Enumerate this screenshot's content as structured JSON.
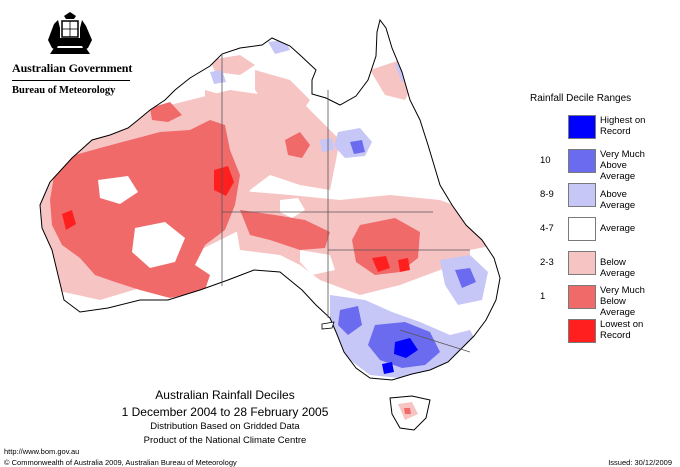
{
  "header": {
    "government": "Australian Government",
    "bureau": "Bureau of Meteorology",
    "crest_icon": "coat-of-arms-icon"
  },
  "legend": {
    "title": "Rainfall Decile Ranges",
    "items": [
      {
        "range": "",
        "label_line1": "Highest on",
        "label_line2": "Record",
        "color": "#0000ff"
      },
      {
        "range": "10",
        "label_line1": "Very Much",
        "label_line2": "Above Average",
        "color": "#6b6bef"
      },
      {
        "range": "8-9",
        "label_line1": "Above Average",
        "label_line2": "",
        "color": "#c6c6f7"
      },
      {
        "range": "4-7",
        "label_line1": "Average",
        "label_line2": "",
        "color": "#ffffff"
      },
      {
        "range": "2-3",
        "label_line1": "Below Average",
        "label_line2": "",
        "color": "#f7c4c4"
      },
      {
        "range": "1",
        "label_line1": "Very Much",
        "label_line2": "Below Average",
        "color": "#f06a6a"
      },
      {
        "range": "",
        "label_line1": "Lowest on",
        "label_line2": "Record",
        "color": "#ff1f1f"
      }
    ]
  },
  "caption": {
    "title": "Australian Rainfall Deciles",
    "dates": "1 December 2004 to 28 February 2005",
    "line1": "Distribution Based on Gridded Data",
    "line2": "Product of the National Climate Centre"
  },
  "footer": {
    "url": "http://www.bom.gov.au",
    "copyright": "© Commonwealth of Australia 2009, Australian Bureau of Meteorology",
    "issued": "Issued: 30/12/2009"
  }
}
